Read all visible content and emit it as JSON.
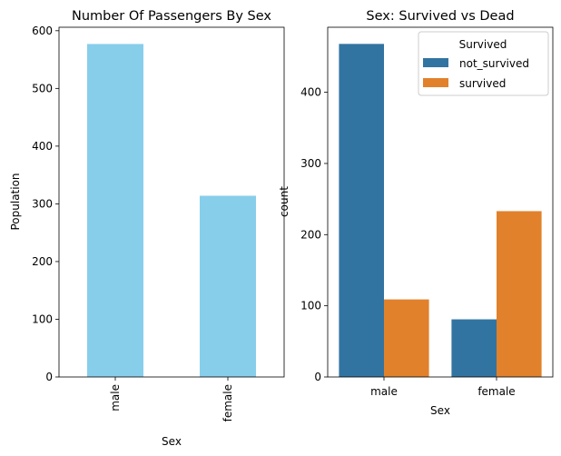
{
  "chart_data": [
    {
      "type": "bar",
      "title": "Number Of Passengers By Sex",
      "xlabel": "Sex",
      "ylabel": "Population",
      "categories": [
        "male",
        "female"
      ],
      "values": [
        577,
        314
      ],
      "ylim": [
        0,
        606
      ],
      "yticks": [
        0,
        100,
        200,
        300,
        400,
        500,
        600
      ],
      "color": "#87ceeb",
      "xtick_rotation": 90
    },
    {
      "type": "bar",
      "title": "Sex: Survived vs Dead",
      "xlabel": "Sex",
      "ylabel": "count",
      "categories": [
        "male",
        "female"
      ],
      "series": [
        {
          "name": "not_survived",
          "values": [
            468,
            81
          ],
          "color": "#3274a1"
        },
        {
          "name": "survived",
          "values": [
            109,
            233
          ],
          "color": "#e1812c"
        }
      ],
      "ylim": [
        0,
        491.4
      ],
      "yticks": [
        0,
        100,
        200,
        300,
        400
      ],
      "legend": {
        "title": "Survived",
        "placement": "top-right"
      }
    }
  ]
}
